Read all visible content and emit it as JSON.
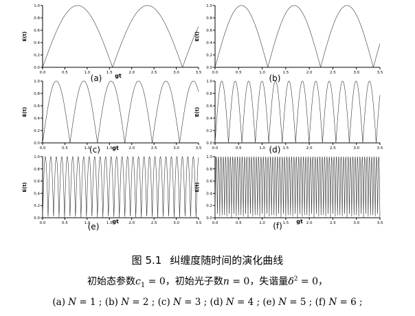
{
  "chart_data": [
    {
      "type": "line",
      "panel": "(a)",
      "N": 1,
      "xlabel": "gt",
      "ylabel": "E(t)",
      "xlim": [
        0,
        3.5
      ],
      "ylim": [
        0,
        1.0
      ],
      "xticks": [
        "0.0",
        "0.5",
        "1.0",
        "1.5",
        "2.0",
        "2.5",
        "3.0",
        "3.5"
      ],
      "yticks": [
        "0.0",
        "0.2",
        "0.4",
        "0.6",
        "0.8",
        "1.0"
      ],
      "series": [
        {
          "description": "|sin(t*pi/1.57)| entanglement oscillation",
          "period": 1.57,
          "min": 0,
          "max": 1
        }
      ]
    },
    {
      "type": "line",
      "panel": "(b)",
      "N": 2,
      "xlabel": "",
      "ylabel": "E(t)",
      "xlim": [
        0,
        3.5
      ],
      "ylim": [
        0,
        1.0
      ],
      "xticks": [
        "0.0",
        "0.5",
        "1.0",
        "1.5",
        "2.0",
        "2.5",
        "3.0",
        "3.5"
      ],
      "yticks": [
        "0.0",
        "0.2",
        "0.4",
        "0.6",
        "0.8",
        "1.0"
      ],
      "series": [
        {
          "period": 1.12,
          "min": 0,
          "max": 1
        }
      ]
    },
    {
      "type": "line",
      "panel": "(c)",
      "N": 3,
      "xlabel": "gt",
      "ylabel": "E(t)",
      "xlim": [
        0,
        3.5
      ],
      "ylim": [
        0,
        1.0
      ],
      "xticks": [
        "0.0",
        "0.5",
        "1.0",
        "1.5",
        "2.0",
        "2.5",
        "3.0",
        "3.5"
      ],
      "yticks": [
        "0.0",
        "0.2",
        "0.4",
        "0.6",
        "0.8",
        "1.0"
      ],
      "series": [
        {
          "period": 0.615,
          "min": 0,
          "max": 1
        }
      ]
    },
    {
      "type": "line",
      "panel": "(d)",
      "N": 4,
      "xlabel": "",
      "ylabel": "E(t)",
      "xlim": [
        0,
        3.5
      ],
      "ylim": [
        0,
        1.0
      ],
      "xticks": [
        "0.0",
        "0.5",
        "1.0",
        "1.5",
        "2.0",
        "2.5",
        "3.0",
        "3.5"
      ],
      "yticks": [
        "0.0",
        "0.2",
        "0.4",
        "0.6",
        "0.8",
        "1.0"
      ],
      "series": [
        {
          "period": 0.285,
          "min": 0,
          "max": 1
        }
      ]
    },
    {
      "type": "line",
      "panel": "(e)",
      "N": 5,
      "xlabel": "gt",
      "ylabel": "E(t)",
      "xlim": [
        0,
        3.5
      ],
      "ylim": [
        0,
        1.0
      ],
      "xticks": [
        "0.0",
        "0.5",
        "1.0",
        "1.5",
        "2.0",
        "2.5",
        "3.0",
        "3.5"
      ],
      "yticks": [
        "0.0",
        "0.2",
        "0.4",
        "0.6",
        "0.8",
        "1.0"
      ],
      "series": [
        {
          "period": 0.123,
          "min": 0,
          "max": 1
        }
      ]
    },
    {
      "type": "line",
      "panel": "(f)",
      "N": 6,
      "xlabel": "gt",
      "ylabel": "E(t)",
      "xlim": [
        0,
        3.5
      ],
      "ylim": [
        0,
        1.0
      ],
      "xticks": [
        "0.0",
        "0.5",
        "1.0",
        "1.5",
        "2.0",
        "2.5",
        "3.0",
        "3.5"
      ],
      "yticks": [
        "0.0",
        "0.2",
        "0.4",
        "0.6",
        "0.8",
        "1.0"
      ],
      "series": [
        {
          "period": 0.05,
          "min": 0,
          "max": 1
        }
      ]
    }
  ],
  "caption": {
    "figure_number": "图 5.1",
    "title": "纠缠度随时间的演化曲线",
    "line2_p1": "初始态参数",
    "line2_p2": "，初始光子数",
    "line2_p3": "，失谐量",
    "line2_end": "，",
    "c1_eq": " = 0",
    "n_eq": " = 0",
    "delta_eq": " = 0",
    "line3": [
      {
        "label": "(a)",
        "N": "1"
      },
      {
        "label": "(b)",
        "N": "2"
      },
      {
        "label": "(c)",
        "N": "3"
      },
      {
        "label": "(d)",
        "N": "4"
      },
      {
        "label": "(e)",
        "N": "5"
      },
      {
        "label": "(f)",
        "N": "6"
      }
    ]
  }
}
